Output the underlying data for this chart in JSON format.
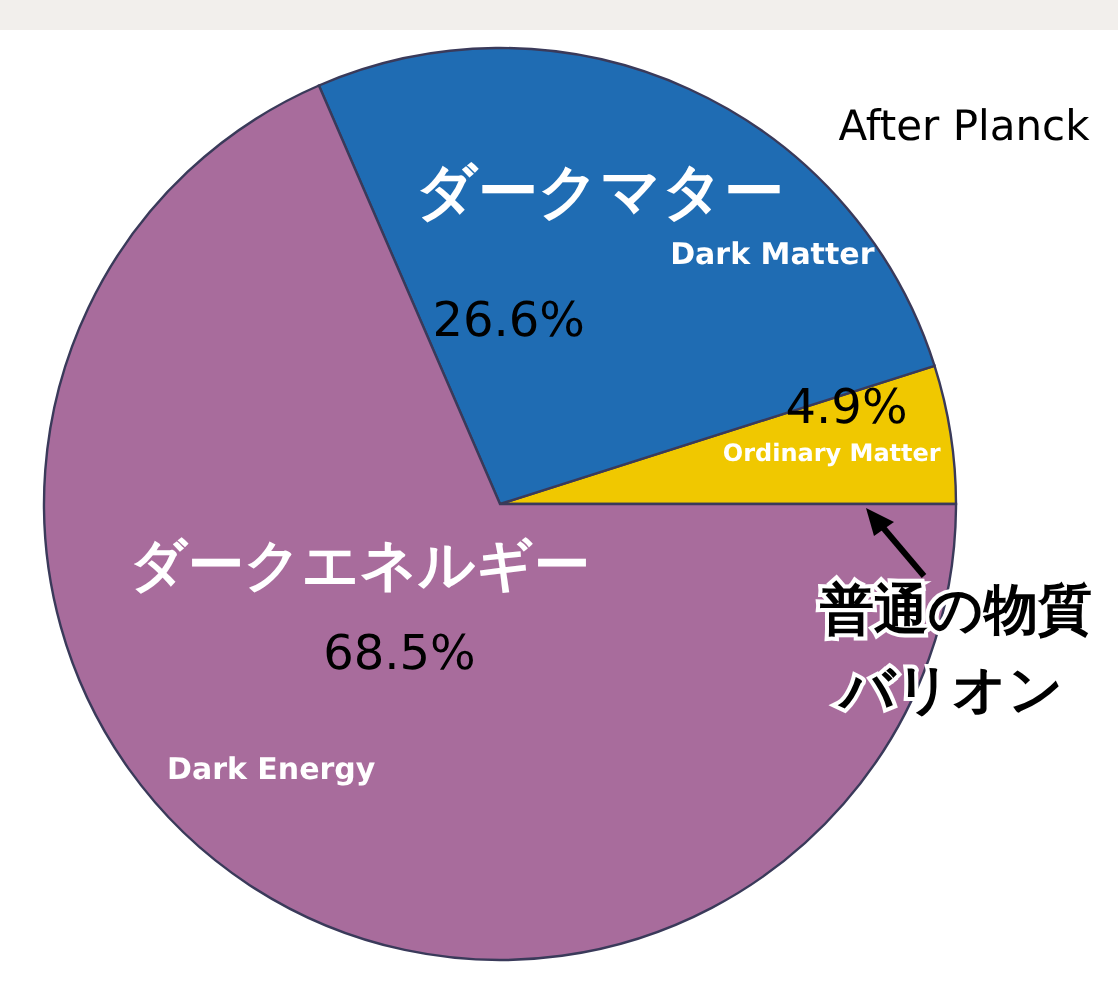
{
  "chart_data": {
    "type": "pie",
    "categories": [
      "Ordinary Matter",
      "Dark Matter",
      "Dark Energy"
    ],
    "values": [
      4.9,
      26.6,
      68.5
    ],
    "colors": [
      "#f0c800",
      "#1f6cb3",
      "#a86c9c"
    ],
    "value_labels": [
      "4.9%",
      "26.6%",
      "68.5%"
    ],
    "annotations": [
      "普通の物質",
      "バリオン",
      "ダークマター",
      "ダークエネルギー",
      "After Planck"
    ]
  }
}
